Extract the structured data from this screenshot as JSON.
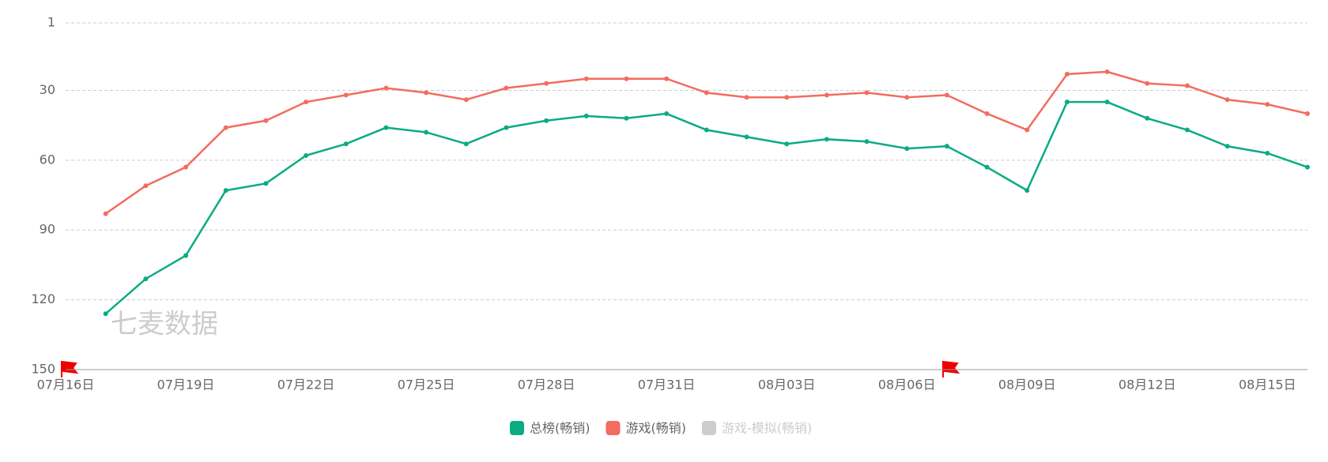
{
  "chart_data": {
    "type": "line",
    "watermark": "七麦数据",
    "categories": [
      "07月16日",
      null,
      null,
      "07月19日",
      null,
      null,
      "07月22日",
      null,
      null,
      "07月25日",
      null,
      null,
      "07月28日",
      null,
      null,
      "07月31日",
      null,
      null,
      "08月03日",
      null,
      null,
      "08月06日",
      null,
      null,
      "08月09日",
      null,
      null,
      "08月12日",
      null,
      null,
      "08月15日",
      null
    ],
    "series": [
      {
        "name": "总榜(畅销)",
        "color": "#0bab84",
        "values": [
          null,
          126,
          111,
          101,
          73,
          70,
          58,
          53,
          46,
          48,
          53,
          46,
          43,
          41,
          42,
          40,
          47,
          50,
          53,
          51,
          52,
          55,
          54,
          63,
          73,
          35,
          35,
          42,
          47,
          54,
          57,
          63
        ]
      },
      {
        "name": "游戏(畅销)",
        "color": "#f26d5f",
        "values": [
          null,
          83,
          71,
          63,
          46,
          43,
          35,
          32,
          29,
          31,
          34,
          29,
          27,
          25,
          25,
          25,
          31,
          33,
          33,
          32,
          31,
          33,
          32,
          40,
          47,
          23,
          22,
          27,
          28,
          34,
          36,
          40
        ]
      },
      {
        "name": "游戏-模拟(畅销)",
        "color": "#cccccc",
        "values": [
          null,
          null,
          null,
          null,
          null,
          null,
          null,
          null,
          null,
          null,
          null,
          null,
          null,
          null,
          null,
          null,
          null,
          null,
          null,
          null,
          null,
          null,
          null,
          null,
          null,
          null,
          null,
          null,
          null,
          null,
          null,
          null
        ]
      }
    ],
    "ylim": [
      150,
      1
    ],
    "yticks": [
      1,
      30,
      60,
      90,
      120,
      150
    ],
    "grid": true
  }
}
